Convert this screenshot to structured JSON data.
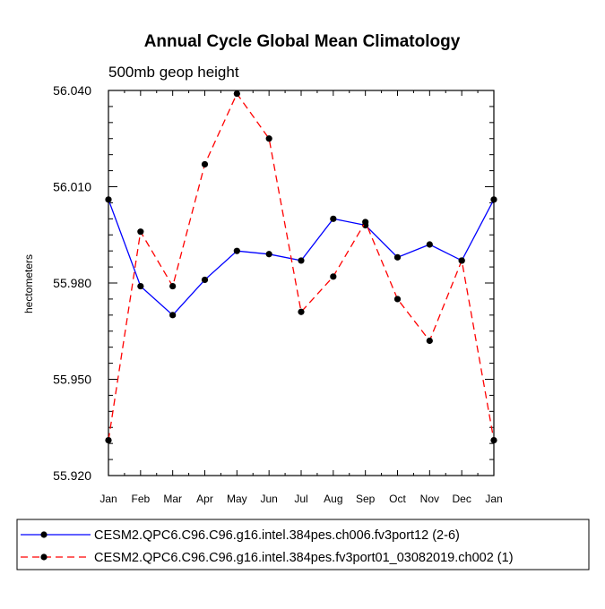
{
  "chart_data": {
    "type": "line",
    "title": "Annual Cycle Global Mean Climatology",
    "subtitle": "500mb geop height",
    "xlabel": "",
    "ylabel": "hectometers",
    "categories": [
      "Jan",
      "Feb",
      "Mar",
      "Apr",
      "May",
      "Jun",
      "Jul",
      "Aug",
      "Sep",
      "Oct",
      "Nov",
      "Dec",
      "Jan"
    ],
    "ylim": [
      55.92,
      56.04
    ],
    "yticks": [
      55.92,
      55.95,
      55.98,
      56.01,
      56.04
    ],
    "ytick_labels": [
      "55.920",
      "55.950",
      "55.980",
      "56.010",
      "56.040"
    ],
    "grid": false,
    "legend_position": "bottom",
    "series": [
      {
        "name": "CESM2.QPC6.C96.C96.g16.intel.384pes.ch006.fv3port12 (2-6)",
        "color": "#0000ff",
        "line_style": "solid",
        "marker": "circle",
        "values": [
          56.006,
          55.979,
          55.97,
          55.981,
          55.99,
          55.989,
          55.987,
          56.0,
          55.998,
          55.988,
          55.992,
          55.987,
          56.006
        ]
      },
      {
        "name": "CESM2.QPC6.C96.C96.g16.intel.384pes.fv3port01_03082019.ch002 (1)",
        "color": "#ff0000",
        "line_style": "dashed",
        "marker": "circle",
        "values": [
          55.931,
          55.996,
          55.979,
          56.017,
          56.039,
          56.025,
          55.971,
          55.982,
          55.999,
          55.975,
          55.962,
          55.987,
          55.931
        ]
      }
    ]
  }
}
